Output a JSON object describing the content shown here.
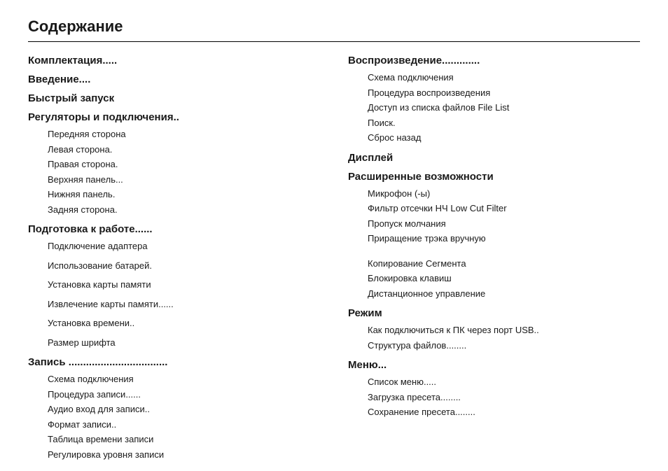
{
  "title": "Содержание",
  "left_column": [
    {
      "title": "Комплектация.....",
      "items": []
    },
    {
      "title": "Введение....",
      "items": []
    },
    {
      "title": "Быстрый запуск",
      "items": []
    },
    {
      "title": "Регуляторы и подключения..",
      "items": [
        "Передняя сторона",
        "Левая сторона.",
        "Правая сторона.",
        "Верхняя панель...",
        "Нижняя панель.",
        "Задняя сторона."
      ]
    },
    {
      "title": "Подготовка к работе......",
      "spaced": true,
      "items": [
        "Подключение адаптера",
        "Использование батарей.",
        "Установка карты памяти",
        "Извлечение карты памяти......",
        "Установка времени..",
        "Размер шрифта"
      ]
    },
    {
      "title": "Запись ..................................",
      "items": [
        "Схема подключения",
        "Процедура записи......",
        "Аудио вход для записи..",
        "Формат записи..",
        "Таблица времени записи",
        "Регулировка уровня записи"
      ]
    }
  ],
  "right_column": [
    {
      "title": "Воспроизведение.............",
      "items": [
        "Схема подключения",
        "Процедура воспроизведения",
        "Доступ из списка файлов File List",
        "Поиск.",
        "Сброс назад"
      ]
    },
    {
      "title": "Дисплей",
      "items": []
    },
    {
      "title": "Расширенные возможности",
      "items": [
        "Микрофон (-ы)",
        "Фильтр отсечки НЧ Low Cut Filter",
        "Пропуск молчания",
        "Приращение трэка вручную",
        "__GAP__",
        "Копирование Сегмента",
        "Блокировка клавиш",
        "Дистанционное управление"
      ]
    },
    {
      "title": "Режим",
      "items": [
        "Как подключиться к ПК через порт USB..",
        "Структура файлов........"
      ]
    },
    {
      "title": "Меню...",
      "items": [
        "Список меню.....",
        "Загрузка пресета........",
        "Сохранение пресета........"
      ]
    }
  ],
  "style": {
    "background_color": "#ffffff",
    "text_color": "#1a1a1a",
    "title_fontsize": 22,
    "section_fontsize": 15,
    "item_fontsize": 13,
    "border_color": "#000000"
  }
}
